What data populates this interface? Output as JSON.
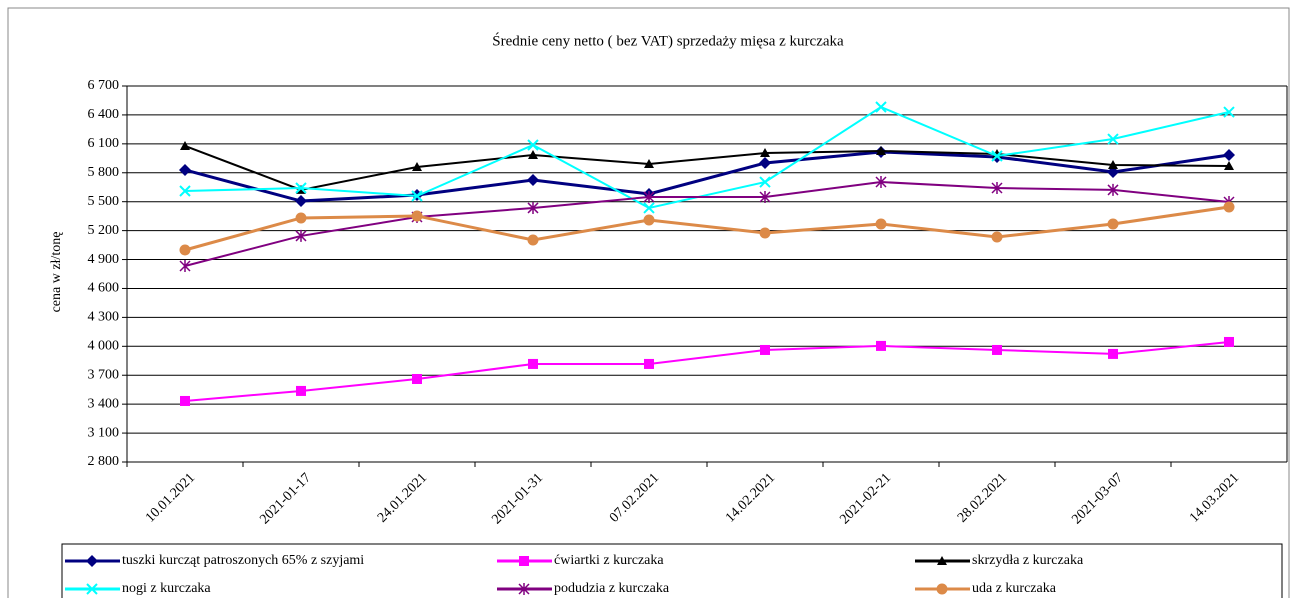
{
  "chart_data": {
    "type": "line",
    "title": "Średnie ceny netto ( bez VAT) sprzedaży mięsa z kurczaka",
    "y_label": "cena w zł/tonę",
    "categories": [
      "10.01.2021",
      "2021-01-17",
      "24.01.2021",
      "2021-01-31",
      "07.02.2021",
      "14.02.2021",
      "2021-02-21",
      "28.02.2021",
      "2021-03-07",
      "14.03.2021"
    ],
    "ylim": [
      2800,
      6700
    ],
    "yticks": [
      {
        "value": 2800,
        "label": "2 800"
      },
      {
        "value": 3100,
        "label": "3 100"
      },
      {
        "value": 3400,
        "label": "3 400"
      },
      {
        "value": 3700,
        "label": "3 700"
      },
      {
        "value": 4000,
        "label": "4 000"
      },
      {
        "value": 4300,
        "label": "4 300"
      },
      {
        "value": 4600,
        "label": "4 600"
      },
      {
        "value": 4900,
        "label": "4 900"
      },
      {
        "value": 5200,
        "label": "5 200"
      },
      {
        "value": 5500,
        "label": "5 500"
      },
      {
        "value": 5800,
        "label": "5 800"
      },
      {
        "value": 6100,
        "label": "6 100"
      },
      {
        "value": 6400,
        "label": "6 400"
      },
      {
        "value": 6700,
        "label": "6 700"
      }
    ],
    "grid": true,
    "legend": "bottom",
    "series": [
      {
        "name": "tuszki kurcząt patroszonych 65% z szyjami",
        "color": "#000080",
        "marker": "diamond",
        "values": [
          5829,
          5507,
          5570,
          5725,
          5580,
          5901,
          6016,
          5964,
          5808,
          5984
        ]
      },
      {
        "name": "ćwiartki z kurczaka",
        "color": "#ff00ff",
        "marker": "square",
        "values": [
          3433,
          3537,
          3661,
          3817,
          3817,
          3962,
          4004,
          3962,
          3921,
          4045
        ]
      },
      {
        "name": "skrzydła z kurczaka",
        "color": "#000000",
        "marker": "triangle",
        "values": [
          6078,
          5622,
          5860,
          5984,
          5891,
          6005,
          6026,
          5995,
          5881,
          5870
        ]
      },
      {
        "name": "nogi z kurczaka",
        "color": "#00ffff",
        "marker": "x",
        "values": [
          5611,
          5642,
          5559,
          6088,
          5435,
          5704,
          6482,
          5974,
          6150,
          6430
        ]
      },
      {
        "name": "podudzia z kurczaka",
        "color": "#800080",
        "marker": "star",
        "values": [
          4833,
          5145,
          5341,
          5435,
          5549,
          5549,
          5704,
          5642,
          5622,
          5497
        ]
      },
      {
        "name": "uda z kurczaka",
        "color": "#dc8a48",
        "marker": "circle",
        "values": [
          4999,
          5331,
          5352,
          5103,
          5310,
          5175,
          5269,
          5134,
          5269,
          5445
        ]
      }
    ]
  }
}
